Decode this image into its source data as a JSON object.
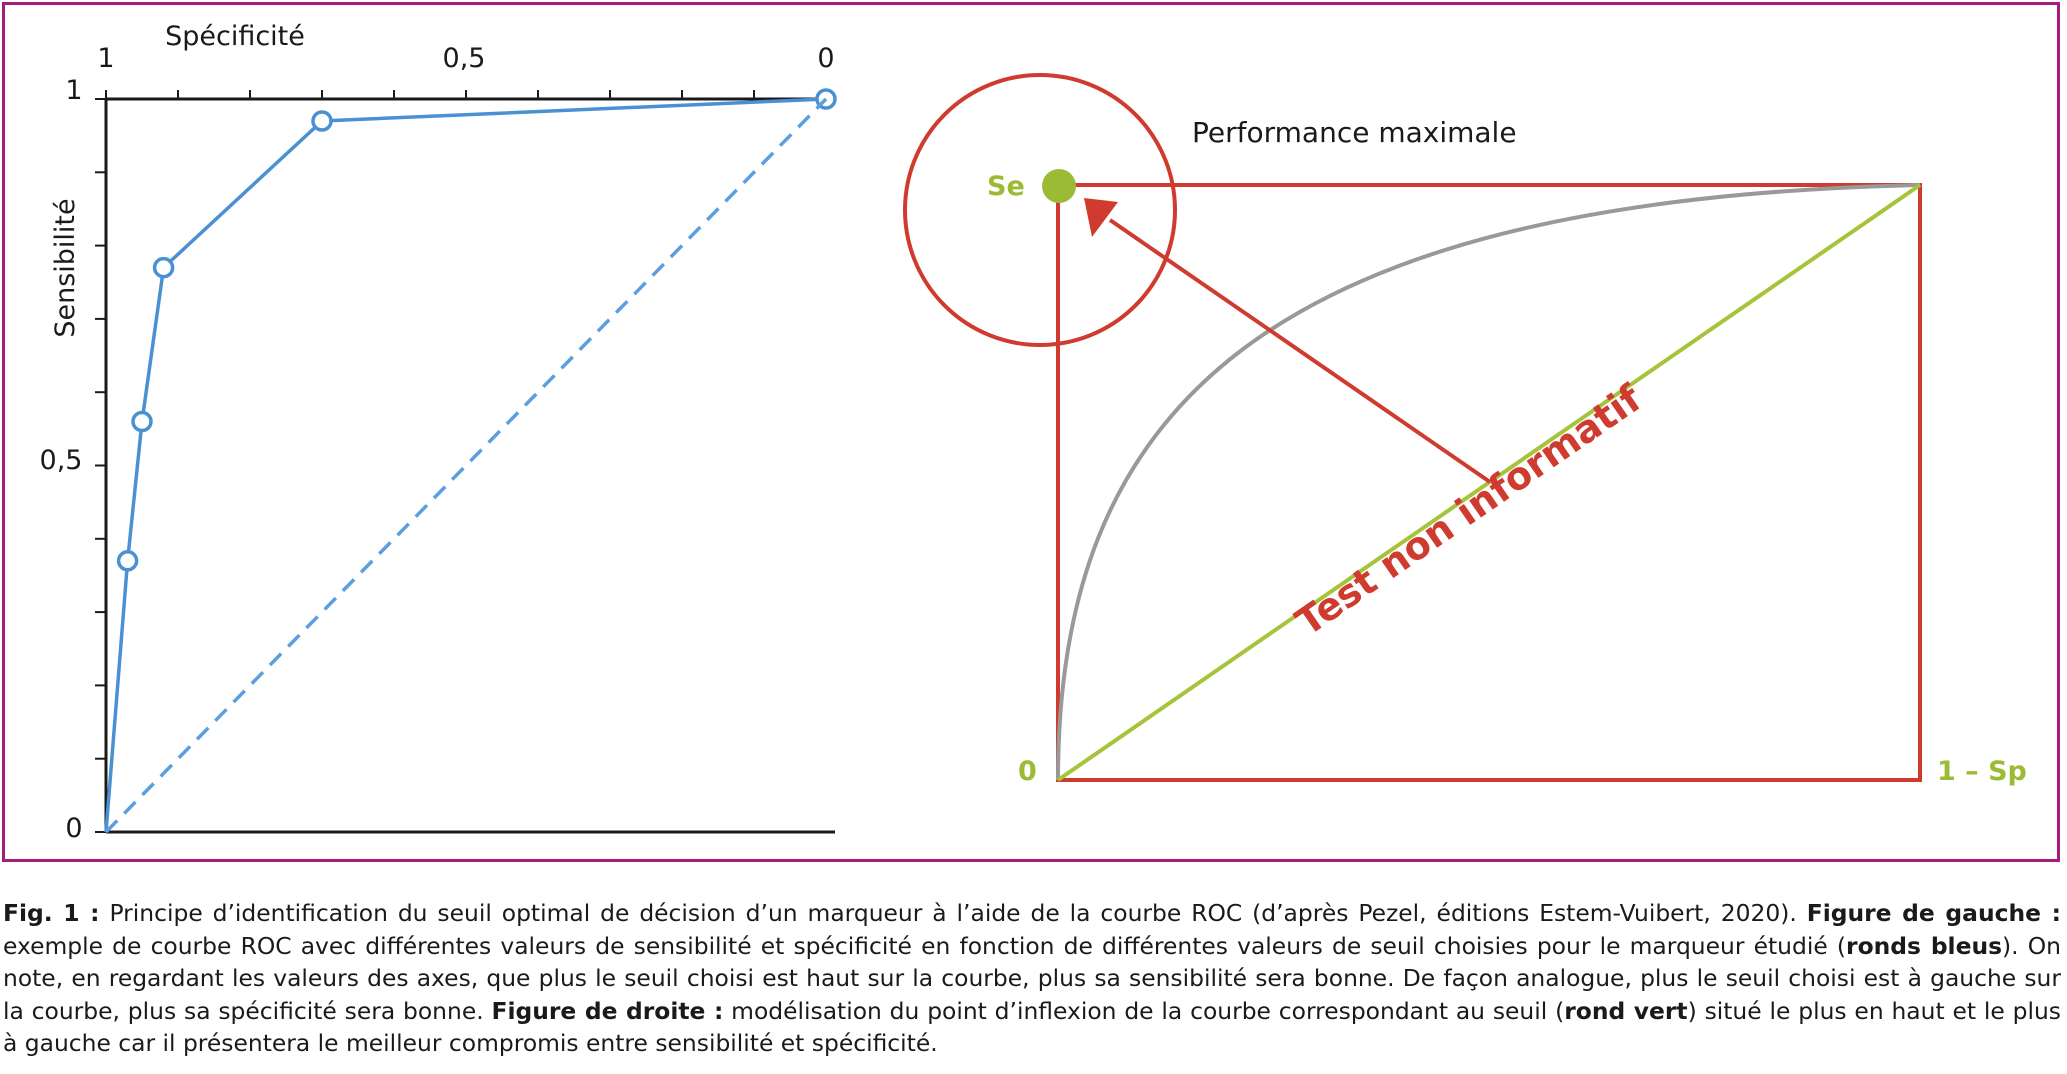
{
  "chart_data": [
    {
      "type": "line",
      "xlabel": "Spécificité",
      "ylabel": "Sensibilité",
      "x_ticks": [
        "1",
        "0,5",
        "0"
      ],
      "y_ticks": [
        "1",
        "0,5",
        "0"
      ],
      "xlim": [
        1,
        0
      ],
      "ylim": [
        0,
        1
      ],
      "grid": false,
      "series": [
        {
          "values": [
            {
              "x": 1.0,
              "y": 0.0
            },
            {
              "x": 0.97,
              "y": 0.37
            },
            {
              "x": 0.95,
              "y": 0.56
            },
            {
              "x": 0.92,
              "y": 0.77
            },
            {
              "x": 0.7,
              "y": 0.97
            },
            {
              "x": 0.0,
              "y": 1.0
            }
          ],
          "color": "#4a90d2",
          "style": "solid",
          "marker": "open-circle"
        },
        {
          "values": [
            {
              "x": 1.0,
              "y": 0.0
            },
            {
              "x": 0.0,
              "y": 1.0
            }
          ],
          "color": "#5b9fe0",
          "style": "dashed"
        }
      ]
    },
    {
      "type": "diagram",
      "annotations": {
        "max_label": "Performance maximale",
        "se_label": "Se",
        "origin_label": "0",
        "x_end_label": "1 – Sp",
        "diagonal_label": "Test non informatif"
      },
      "colors": {
        "box": "#cf3b2e",
        "diagonal": "#a6c43a",
        "curve": "#999999",
        "arrow": "#cf3b2e",
        "labels_green": "#9bbb35",
        "label_red": "#cf3b2e"
      }
    }
  ],
  "caption": {
    "fig_label": "Fig. 1 :",
    "text_1": " Principe d’identification du seuil optimal de décision d’un marqueur à l’aide de la courbe ROC (d’après Pezel, éditions Estem-Vuibert, 2020). ",
    "left_label": "Figure de gauche :",
    "text_2": " exemple de courbe ROC avec différentes valeurs de sensibilité et spécificité en fonction de différentes valeurs de seuil choisies pour le marqueur étudié (",
    "blue_label": "ronds bleus",
    "text_3": "). On note, en regardant les valeurs des axes, que plus le seuil choisi est haut sur la courbe, plus sa sensibilité sera bonne. De façon analogue, plus le seuil choisi est à gauche sur la courbe, plus sa spécificité sera bonne. ",
    "right_label": "Figure de droite :",
    "text_4": " modélisation du point d’inflexion de la courbe correspondant au seuil (",
    "green_label": "rond vert",
    "text_5": ") situé le plus en haut et le plus à gauche car il présentera le meilleur compromis entre sensibilité et spécificité."
  }
}
